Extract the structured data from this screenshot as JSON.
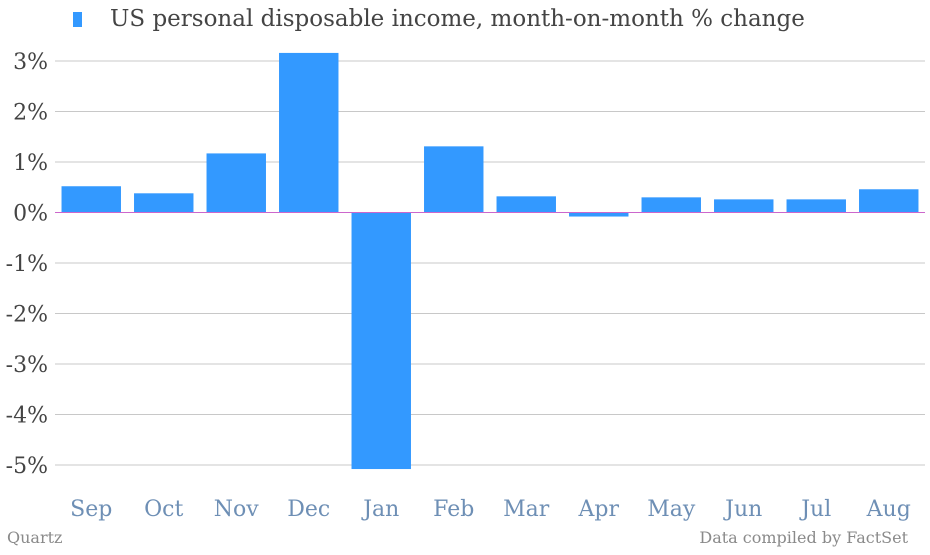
{
  "legend": {
    "label": "US personal disposable income, month-on-month % change",
    "color": "#3399ff"
  },
  "footer": {
    "source_left": "Quartz",
    "source_right": "Data compiled by FactSet"
  },
  "chart_data": {
    "type": "bar",
    "categories": [
      "Sep",
      "Oct",
      "Nov",
      "Dec",
      "Jan",
      "Feb",
      "Mar",
      "Apr",
      "May",
      "Jun",
      "Jul",
      "Aug"
    ],
    "series": [
      {
        "name": "US personal disposable income, month-on-month % change",
        "values": [
          0.52,
          0.38,
          1.17,
          3.16,
          -5.08,
          1.31,
          0.32,
          -0.08,
          0.3,
          0.26,
          0.26,
          0.46
        ]
      }
    ],
    "ylim": [
      -5,
      3
    ],
    "yticks": [
      "3%",
      "2%",
      "1%",
      "0%",
      "-1%",
      "-2%",
      "-3%",
      "-4%",
      "-5%"
    ],
    "grid": true,
    "bar_color": "#3399ff",
    "zero_line_color": "#cc66cc"
  }
}
